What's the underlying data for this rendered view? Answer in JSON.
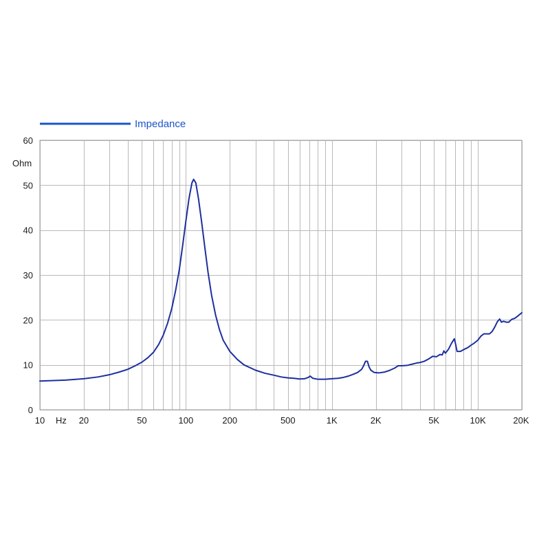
{
  "chart_data": {
    "type": "line",
    "title": "",
    "xlabel": "Hz",
    "ylabel": "Ohm",
    "x_scale": "log",
    "xlim": [
      10,
      20000
    ],
    "ylim": [
      0,
      60
    ],
    "grid": true,
    "legend_position": "top-left",
    "x_ticks": [
      {
        "value": 10,
        "label": "10"
      },
      {
        "value": 20,
        "label": "20"
      },
      {
        "value": 50,
        "label": "50"
      },
      {
        "value": 100,
        "label": "100"
      },
      {
        "value": 200,
        "label": "200"
      },
      {
        "value": 500,
        "label": "500"
      },
      {
        "value": 1000,
        "label": "1K"
      },
      {
        "value": 2000,
        "label": "2K"
      },
      {
        "value": 5000,
        "label": "5K"
      },
      {
        "value": 10000,
        "label": "10K"
      },
      {
        "value": 20000,
        "label": "20K"
      }
    ],
    "y_ticks": [
      {
        "value": 0,
        "label": "0"
      },
      {
        "value": 10,
        "label": "10"
      },
      {
        "value": 20,
        "label": "20"
      },
      {
        "value": 30,
        "label": "30"
      },
      {
        "value": 40,
        "label": "40"
      },
      {
        "value": 50,
        "label": "50"
      },
      {
        "value": 60,
        "label": "60"
      }
    ],
    "series": [
      {
        "name": "Impedance",
        "color": "#1c2f9e",
        "legend_color": "#1a54c8",
        "points": [
          [
            10,
            6.4
          ],
          [
            15,
            6.6
          ],
          [
            20,
            6.9
          ],
          [
            25,
            7.3
          ],
          [
            30,
            7.8
          ],
          [
            35,
            8.4
          ],
          [
            40,
            9.0
          ],
          [
            45,
            9.8
          ],
          [
            50,
            10.6
          ],
          [
            55,
            11.6
          ],
          [
            60,
            12.8
          ],
          [
            65,
            14.5
          ],
          [
            70,
            16.6
          ],
          [
            75,
            19.3
          ],
          [
            80,
            22.5
          ],
          [
            85,
            26.5
          ],
          [
            90,
            31.0
          ],
          [
            95,
            36.5
          ],
          [
            100,
            42.0
          ],
          [
            105,
            47.0
          ],
          [
            110,
            50.5
          ],
          [
            113,
            51.3
          ],
          [
            117,
            50.5
          ],
          [
            122,
            47.0
          ],
          [
            128,
            42.0
          ],
          [
            135,
            36.0
          ],
          [
            142,
            30.5
          ],
          [
            150,
            25.5
          ],
          [
            160,
            21.0
          ],
          [
            170,
            17.8
          ],
          [
            180,
            15.5
          ],
          [
            200,
            13.0
          ],
          [
            225,
            11.2
          ],
          [
            250,
            10.0
          ],
          [
            300,
            8.8
          ],
          [
            350,
            8.1
          ],
          [
            400,
            7.7
          ],
          [
            450,
            7.3
          ],
          [
            500,
            7.1
          ],
          [
            550,
            7.0
          ],
          [
            600,
            6.85
          ],
          [
            650,
            6.9
          ],
          [
            690,
            7.2
          ],
          [
            710,
            7.5
          ],
          [
            740,
            7.0
          ],
          [
            800,
            6.8
          ],
          [
            900,
            6.8
          ],
          [
            1000,
            6.9
          ],
          [
            1100,
            7.0
          ],
          [
            1200,
            7.2
          ],
          [
            1300,
            7.5
          ],
          [
            1400,
            7.9
          ],
          [
            1500,
            8.3
          ],
          [
            1600,
            9.0
          ],
          [
            1650,
            9.8
          ],
          [
            1700,
            10.8
          ],
          [
            1750,
            10.8
          ],
          [
            1800,
            9.5
          ],
          [
            1850,
            8.8
          ],
          [
            1950,
            8.3
          ],
          [
            2100,
            8.2
          ],
          [
            2300,
            8.4
          ],
          [
            2500,
            8.8
          ],
          [
            2700,
            9.3
          ],
          [
            2850,
            9.8
          ],
          [
            3000,
            9.8
          ],
          [
            3300,
            9.9
          ],
          [
            3500,
            10.1
          ],
          [
            3800,
            10.4
          ],
          [
            4000,
            10.5
          ],
          [
            4300,
            10.8
          ],
          [
            4600,
            11.3
          ],
          [
            4900,
            11.9
          ],
          [
            5200,
            11.8
          ],
          [
            5500,
            12.3
          ],
          [
            5700,
            12.2
          ],
          [
            5850,
            13.1
          ],
          [
            6000,
            12.6
          ],
          [
            6300,
            13.5
          ],
          [
            6600,
            14.8
          ],
          [
            6900,
            15.8
          ],
          [
            7050,
            14.5
          ],
          [
            7200,
            13.0
          ],
          [
            7600,
            13.0
          ],
          [
            8000,
            13.4
          ],
          [
            8500,
            13.8
          ],
          [
            9000,
            14.4
          ],
          [
            9500,
            14.9
          ],
          [
            10000,
            15.5
          ],
          [
            10500,
            16.4
          ],
          [
            11000,
            16.9
          ],
          [
            12000,
            16.9
          ],
          [
            12500,
            17.4
          ],
          [
            13000,
            18.3
          ],
          [
            13600,
            19.6
          ],
          [
            14100,
            20.2
          ],
          [
            14500,
            19.5
          ],
          [
            15000,
            19.7
          ],
          [
            15600,
            19.5
          ],
          [
            16300,
            19.5
          ],
          [
            17000,
            20.1
          ],
          [
            18000,
            20.4
          ],
          [
            19000,
            21.0
          ],
          [
            20000,
            21.6
          ]
        ]
      }
    ]
  }
}
